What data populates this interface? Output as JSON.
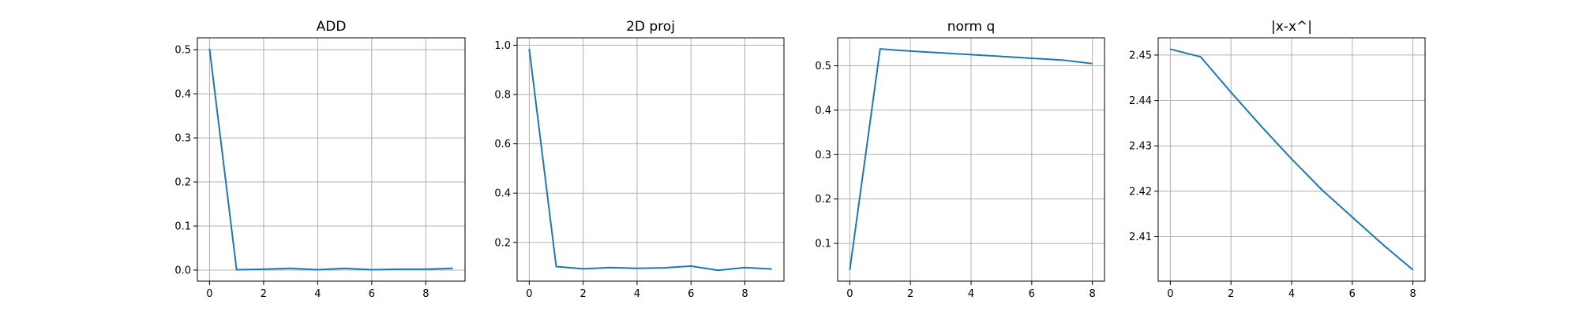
{
  "chart_data": [
    {
      "type": "line",
      "title": "ADD",
      "x": [
        0,
        1,
        2,
        3,
        4,
        5,
        6,
        7,
        8,
        9
      ],
      "series": [
        {
          "values": [
            0.502,
            0.001,
            0.002,
            0.004,
            0.001,
            0.004,
            0.001,
            0.002,
            0.002,
            0.004
          ]
        }
      ],
      "xlim": [
        -0.45,
        9.45
      ],
      "ylim": [
        -0.025,
        0.527
      ],
      "xticks": [
        0,
        2,
        4,
        6,
        8
      ],
      "yticks": [
        0.0,
        0.1,
        0.2,
        0.3,
        0.4,
        0.5
      ],
      "ytick_labels": [
        "0.0",
        "0.1",
        "0.2",
        "0.3",
        "0.4",
        "0.5"
      ],
      "grid": true
    },
    {
      "type": "line",
      "title": "2D proj",
      "x": [
        0,
        1,
        2,
        3,
        4,
        5,
        6,
        7,
        8,
        9
      ],
      "series": [
        {
          "values": [
            0.985,
            0.102,
            0.093,
            0.098,
            0.095,
            0.097,
            0.104,
            0.087,
            0.098,
            0.092
          ]
        }
      ],
      "xlim": [
        -0.45,
        9.45
      ],
      "ylim": [
        0.043,
        1.03
      ],
      "xticks": [
        0,
        2,
        4,
        6,
        8
      ],
      "yticks": [
        0.2,
        0.4,
        0.6,
        0.8,
        1.0
      ],
      "ytick_labels": [
        "0.2",
        "0.4",
        "0.6",
        "0.8",
        "1.0"
      ],
      "grid": true
    },
    {
      "type": "line",
      "title": "norm q",
      "x": [
        0,
        1,
        2,
        3,
        4,
        5,
        6,
        7,
        8
      ],
      "series": [
        {
          "values": [
            0.04,
            0.538,
            0.533,
            0.529,
            0.525,
            0.521,
            0.517,
            0.513,
            0.505
          ]
        }
      ],
      "xlim": [
        -0.4,
        8.4
      ],
      "ylim": [
        0.015,
        0.563
      ],
      "xticks": [
        0,
        2,
        4,
        6,
        8
      ],
      "yticks": [
        0.1,
        0.2,
        0.3,
        0.4,
        0.5
      ],
      "ytick_labels": [
        "0.1",
        "0.2",
        "0.3",
        "0.4",
        "0.5"
      ],
      "grid": true
    },
    {
      "type": "line",
      "title": "|x-x^|",
      "x": [
        0,
        1,
        2,
        3,
        4,
        5,
        6,
        7,
        8
      ],
      "series": [
        {
          "values": [
            2.4513,
            2.4496,
            2.4418,
            2.4343,
            2.4271,
            2.4203,
            2.4143,
            2.4083,
            2.4027
          ]
        }
      ],
      "xlim": [
        -0.4,
        8.4
      ],
      "ylim": [
        2.4002,
        2.4538
      ],
      "xticks": [
        0,
        2,
        4,
        6,
        8
      ],
      "yticks": [
        2.41,
        2.42,
        2.43,
        2.44,
        2.45
      ],
      "ytick_labels": [
        "2.41",
        "2.42",
        "2.43",
        "2.44",
        "2.45"
      ],
      "grid": true
    }
  ]
}
